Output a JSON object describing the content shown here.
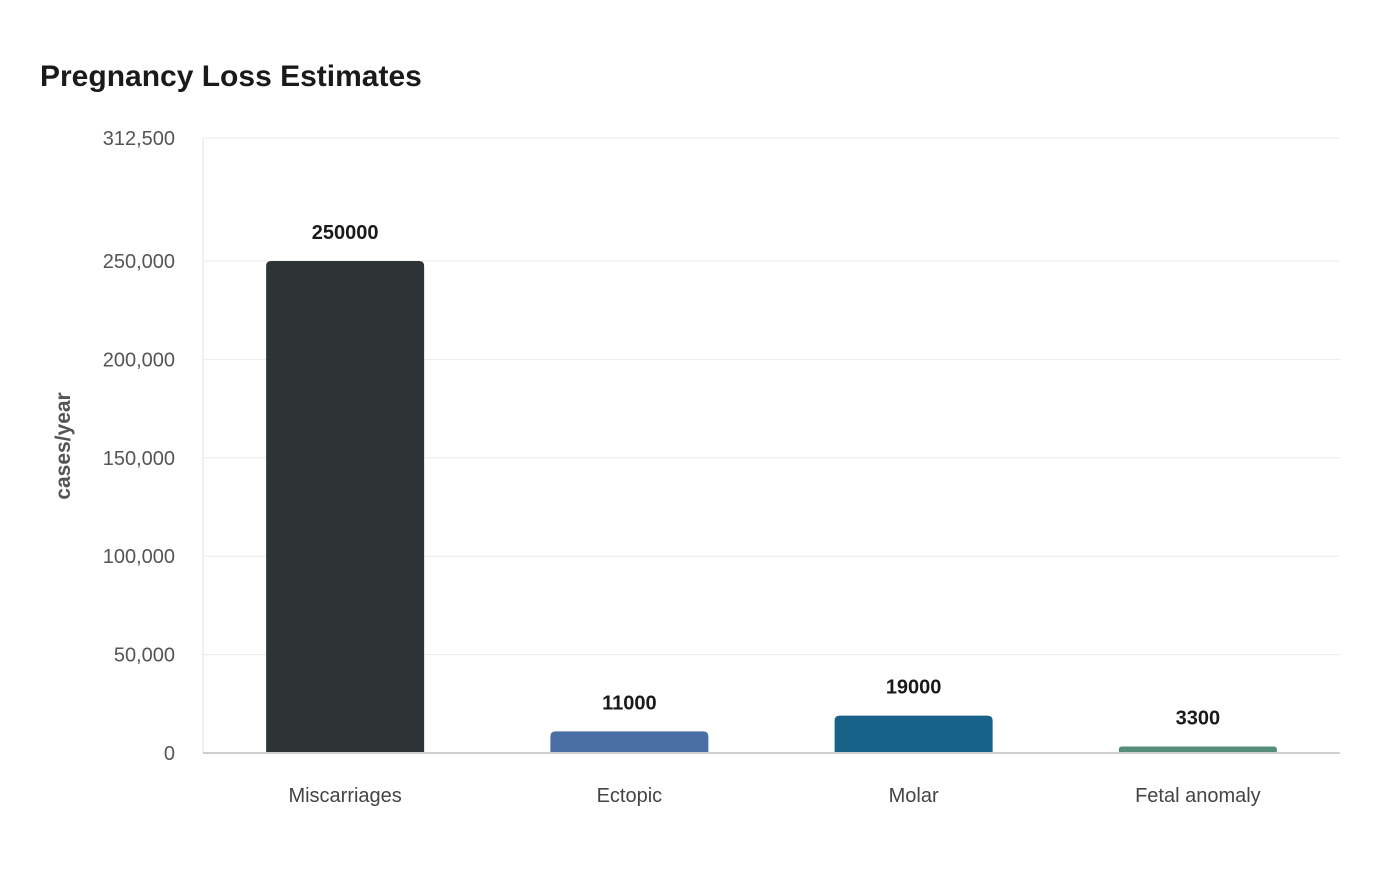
{
  "chart_data": {
    "type": "bar",
    "title": "Pregnancy Loss Estimates",
    "xlabel": "",
    "ylabel": "cases/year",
    "categories": [
      "Miscarriages",
      "Ectopic",
      "Molar",
      "Fetal anomaly"
    ],
    "values": [
      250000,
      11000,
      19000,
      3300
    ],
    "data_labels": [
      "250000",
      "11000",
      "19000",
      "3300"
    ],
    "colors": [
      "#2d3436",
      "#4a6fa5",
      "#186189",
      "#548d7c"
    ],
    "ylim": [
      0,
      312500
    ],
    "yticks": [
      0,
      50000,
      100000,
      150000,
      200000,
      250000,
      312500
    ],
    "ytick_labels": [
      "0",
      "50,000",
      "100,000",
      "150,000",
      "200,000",
      "250,000",
      "312,500"
    ],
    "grid": true,
    "legend": "none"
  }
}
